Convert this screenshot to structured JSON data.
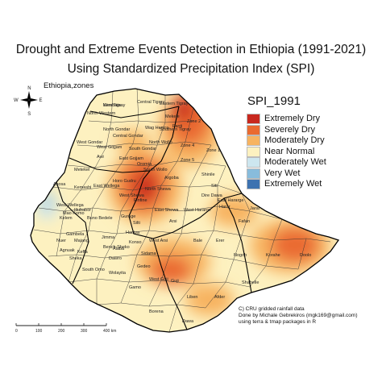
{
  "title_lines": [
    "Drought and Extreme Events Detection in Ethiopia (1991-2021)",
    "Using Standardized Precipitation Index (SPI)"
  ],
  "subtitle": "Ethiopia,zones",
  "compass": {
    "n": "N",
    "e": "E",
    "s": "S",
    "w": "W"
  },
  "legend": {
    "title": "SPI_1991",
    "items": [
      {
        "label": "Extremely Dry",
        "color": "#c8281e"
      },
      {
        "label": "Severely Dry",
        "color": "#ea6a30"
      },
      {
        "label": "Moderately Dry",
        "color": "#f7b361"
      },
      {
        "label": "Near Normal",
        "color": "#fdf1c0"
      },
      {
        "label": "Moderately Wet",
        "color": "#cde6ef"
      },
      {
        "label": "Very Wet",
        "color": "#88bcdc"
      },
      {
        "label": "Extremely Wet",
        "color": "#3d72b0"
      }
    ]
  },
  "zone_labels": [
    "Wes Tigray",
    "North Western",
    "Central Tigray",
    "Eastern Tigray",
    "Mekele",
    "Southern Tigray",
    "Zone 2",
    "North Gondar",
    "Wag Hemra",
    "Central Gondar",
    "South Gondar",
    "North Wollo",
    "Zone 4",
    "West Gojjam",
    "West Gondar",
    "Awi",
    "East Gojjam",
    "Oromia",
    "South Wollo",
    "Zone 5",
    "Zone 1",
    "Fanti",
    "Metekel",
    "Kemashi",
    "North Shewa",
    "Argoba",
    "Shinile",
    "Siti",
    "Dire Dawa",
    "Harar",
    "East Hararge",
    "West Hararge",
    "Jarar",
    "Fafan",
    "Asosa",
    "East Wellega",
    "Horo Gudru",
    "West Shewa",
    "Finfine",
    "Arsi",
    "East Shewa",
    "Mao Komo",
    "Kelem",
    "West Wellega",
    "Illubabor",
    "Buno Bedele",
    "Jimma",
    "Gurage",
    "Hadiya",
    "Silti",
    "West Arsi",
    "Bale",
    "Erer",
    "Nogob",
    "Korahe",
    "Doolo",
    "Shabelle",
    "Sidama",
    "Gedeo",
    "Guji",
    "West Guji",
    "Borena",
    "Liben",
    "Afder",
    "Dawa",
    "South Omo",
    "Gambela",
    "Majang",
    "Nuer",
    "Agnuak",
    "Keffa",
    "Sheka",
    "Bench Sheko",
    "Dawro",
    "Wolayita",
    "Gamo",
    "Konso",
    "Alaba",
    "Kembata"
  ],
  "scale_bar": {
    "ticks": [
      "0",
      "100",
      "200",
      "300",
      "400 km"
    ],
    "km_values": [
      0,
      100,
      200,
      300,
      400
    ]
  },
  "credits": [
    "C) CRU gridded rainfall data",
    "Done by Michale Gebrekiros (mgk169@gmail.com)",
    "using terra & tmap packages in R"
  ]
}
